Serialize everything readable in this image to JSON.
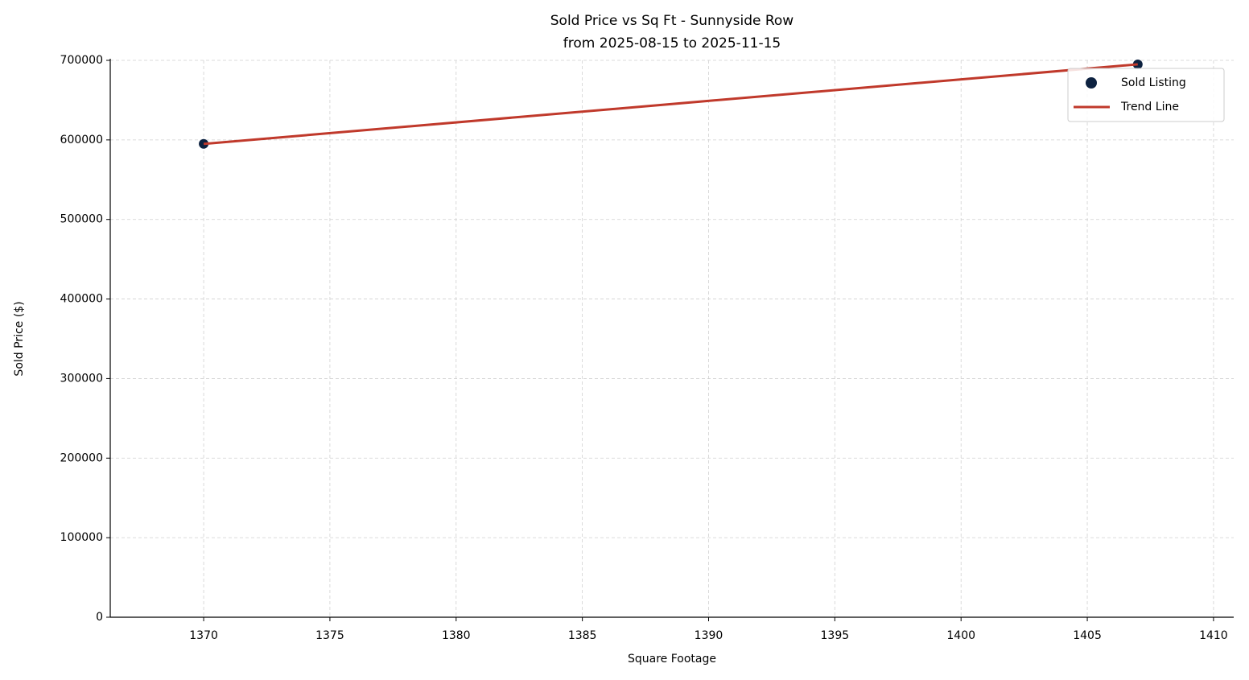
{
  "chart_data": {
    "type": "scatter",
    "title": "Sold Price vs Sq Ft - Sunnyside Row",
    "subtitle": "from 2025-08-15 to 2025-11-15",
    "x_label": "Square Footage",
    "y_label": "Sold Price ($)",
    "series": [
      {
        "name": "Sold Listing",
        "type": "scatter",
        "color": "#0d2240",
        "x": [
          1370,
          1407
        ],
        "values": [
          595000,
          695000
        ]
      },
      {
        "name": "Trend Line",
        "type": "line",
        "color": "#c0392b",
        "x": [
          1370,
          1407
        ],
        "values": [
          595000,
          695000
        ]
      }
    ],
    "xlim": [
      1366.3,
      1410.8
    ],
    "xticks": [
      1370,
      1375,
      1380,
      1385,
      1390,
      1395,
      1400,
      1405,
      1410
    ],
    "ylim": [
      0,
      700000
    ],
    "yticks": [
      0,
      100000,
      200000,
      300000,
      400000,
      500000,
      600000,
      700000
    ],
    "grid": true,
    "legend": "upper right"
  }
}
